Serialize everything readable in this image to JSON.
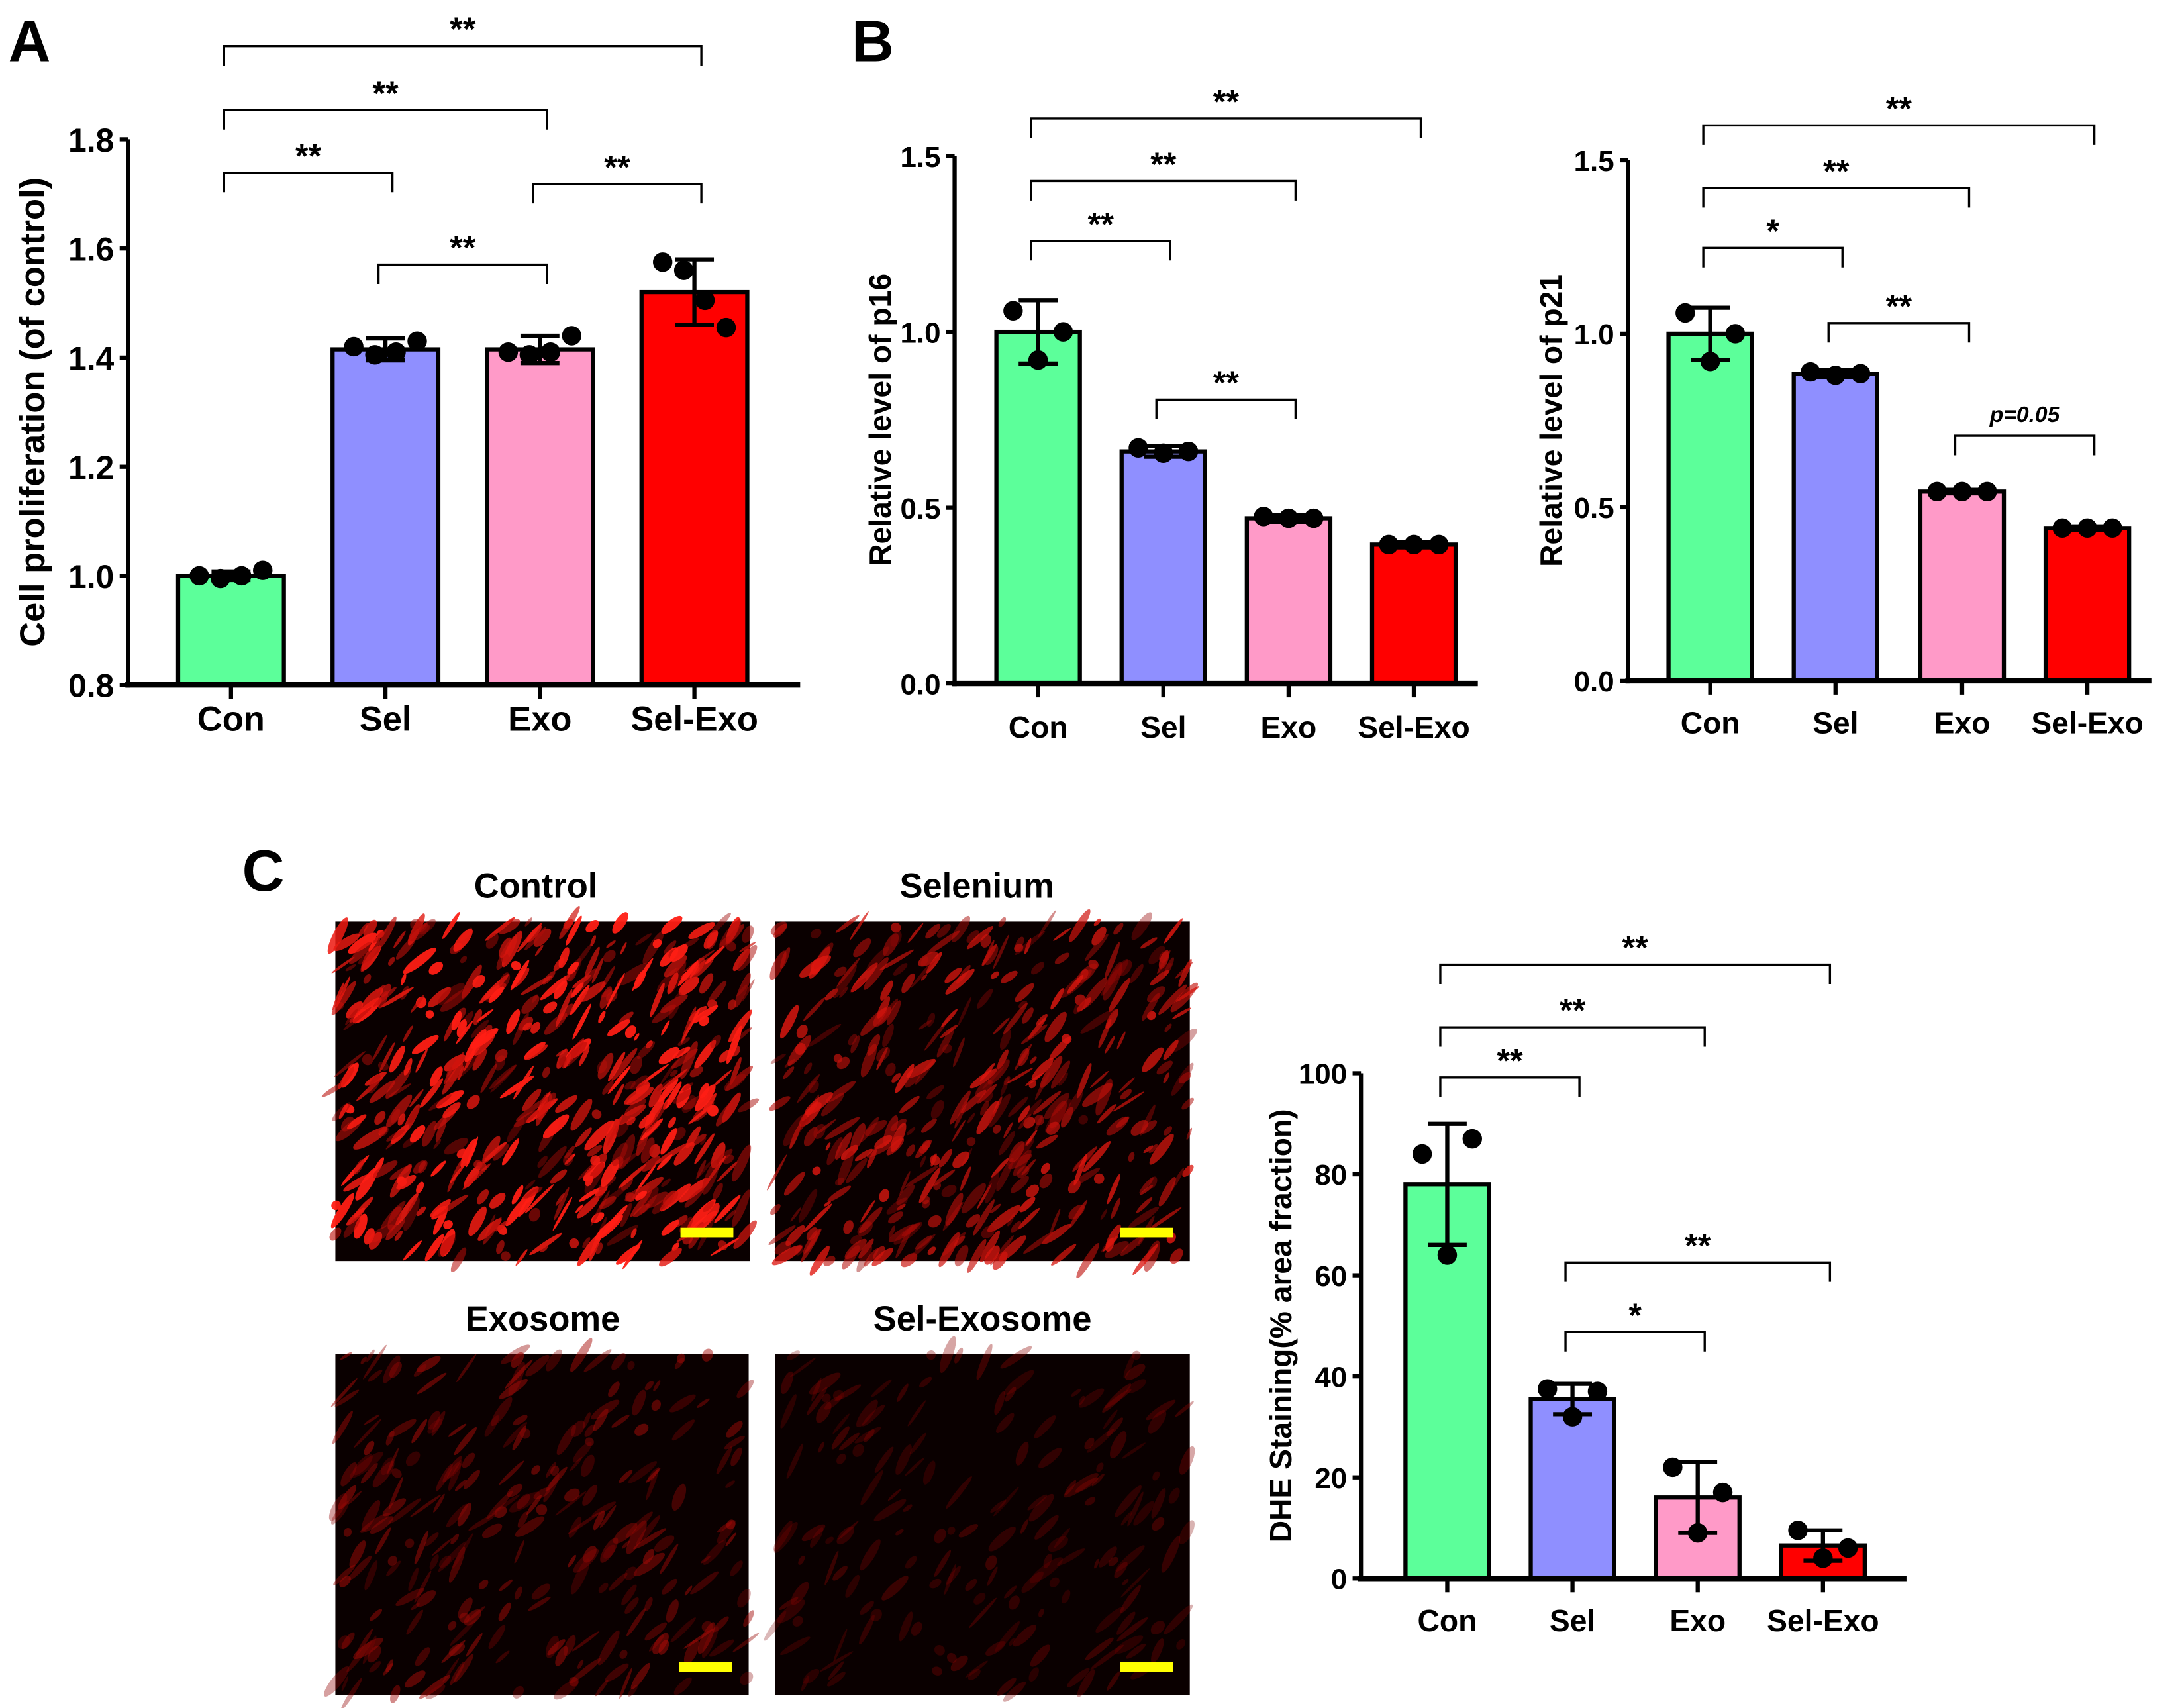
{
  "panel_labels": {
    "a": "A",
    "b": "B",
    "c": "C"
  },
  "micrographs": {
    "titles": [
      "Control",
      "Selenium",
      "Exosome",
      "Sel-Exosome"
    ],
    "relative_signal": [
      1.0,
      0.7,
      0.35,
      0.15
    ],
    "scale_bar_color": "#ffff00"
  },
  "chart_data": [
    {
      "id": "A",
      "type": "bar",
      "title": "",
      "ylabel": "Cell proliferation (of control)",
      "categories": [
        "Con",
        "Sel",
        "Exo",
        "Sel-Exo"
      ],
      "values": [
        1.0,
        1.415,
        1.415,
        1.52
      ],
      "errors": [
        0.008,
        0.02,
        0.025,
        0.06
      ],
      "points": [
        [
          1.0,
          0.995,
          1.0,
          1.01
        ],
        [
          1.42,
          1.405,
          1.41,
          1.43
        ],
        [
          1.41,
          1.405,
          1.41,
          1.44
        ],
        [
          1.575,
          1.56,
          1.505,
          1.455
        ]
      ],
      "ylim": [
        0.8,
        1.8
      ],
      "yticks": [
        "0.8",
        "1.0",
        "1.2",
        "1.4",
        "1.6",
        "1.8"
      ],
      "ytick_values": [
        0.8,
        1.0,
        1.2,
        1.4,
        1.6,
        1.8
      ],
      "colors": [
        "#5cff9a",
        "#8f8fff",
        "#ff9ac8",
        "#ff0000"
      ],
      "significance": [
        {
          "from": 0,
          "to": 3,
          "label": "**"
        },
        {
          "from": 0,
          "to": 2,
          "label": "**"
        },
        {
          "from": 0,
          "to": 1,
          "label": "**"
        },
        {
          "from": 2,
          "to": 3,
          "label": "**"
        },
        {
          "from": 1,
          "to": 2,
          "label": "**"
        }
      ]
    },
    {
      "id": "B-p16",
      "type": "bar",
      "title": "",
      "ylabel": "Relative level of p16",
      "categories": [
        "Con",
        "Sel",
        "Exo",
        "Sel-Exo"
      ],
      "values": [
        1.0,
        0.66,
        0.47,
        0.395
      ],
      "errors": [
        0.09,
        0.015,
        0.01,
        0.008
      ],
      "points": [
        [
          1.06,
          0.92,
          1.0
        ],
        [
          0.67,
          0.655,
          0.66
        ],
        [
          0.475,
          0.47,
          0.47
        ],
        [
          0.395,
          0.395,
          0.395
        ]
      ],
      "ylim": [
        0,
        1.5
      ],
      "yticks": [
        "0.0",
        "0.5",
        "1.0",
        "1.5"
      ],
      "ytick_values": [
        0,
        0.5,
        1.0,
        1.5
      ],
      "colors": [
        "#5cff9a",
        "#8f8fff",
        "#ff9ac8",
        "#ff0000"
      ],
      "significance": [
        {
          "from": 0,
          "to": 3,
          "label": "**"
        },
        {
          "from": 0,
          "to": 2,
          "label": "**"
        },
        {
          "from": 0,
          "to": 1,
          "label": "**"
        },
        {
          "from": 1,
          "to": 2,
          "label": "**"
        }
      ]
    },
    {
      "id": "B-p21",
      "type": "bar",
      "title": "",
      "ylabel": "Relative level of p21",
      "categories": [
        "Con",
        "Sel",
        "Exo",
        "Sel-Exo"
      ],
      "values": [
        1.0,
        0.885,
        0.545,
        0.44
      ],
      "errors": [
        0.075,
        0.01,
        0.005,
        0.005
      ],
      "points": [
        [
          1.06,
          0.92,
          1.0
        ],
        [
          0.89,
          0.88,
          0.885
        ],
        [
          0.545,
          0.545,
          0.545
        ],
        [
          0.44,
          0.44,
          0.44
        ]
      ],
      "ylim": [
        0,
        1.5
      ],
      "yticks": [
        "0.0",
        "0.5",
        "1.0",
        "1.5"
      ],
      "ytick_values": [
        0,
        0.5,
        1.0,
        1.5
      ],
      "colors": [
        "#5cff9a",
        "#8f8fff",
        "#ff9ac8",
        "#ff0000"
      ],
      "significance": [
        {
          "from": 0,
          "to": 3,
          "label": "**"
        },
        {
          "from": 0,
          "to": 2,
          "label": "**"
        },
        {
          "from": 0,
          "to": 1,
          "label": "*"
        },
        {
          "from": 1,
          "to": 2,
          "label": "**"
        },
        {
          "from": 2,
          "to": 3,
          "label": "p=0.05"
        }
      ]
    },
    {
      "id": "C",
      "type": "bar",
      "title": "",
      "ylabel": "DHE Staining(% area fraction)",
      "categories": [
        "Con",
        "Sel",
        "Exo",
        "Sel-Exo"
      ],
      "values": [
        78,
        35.5,
        16,
        6.5
      ],
      "errors": [
        12,
        3,
        7,
        3
      ],
      "points": [
        [
          84,
          64,
          87
        ],
        [
          37.5,
          32,
          37
        ],
        [
          22,
          9,
          17
        ],
        [
          9.5,
          4,
          6
        ]
      ],
      "ylim": [
        0,
        100
      ],
      "yticks": [
        "0",
        "20",
        "40",
        "60",
        "80",
        "100"
      ],
      "ytick_values": [
        0,
        20,
        40,
        60,
        80,
        100
      ],
      "colors": [
        "#5cff9a",
        "#8f8fff",
        "#ff9ac8",
        "#ff0000"
      ],
      "significance": [
        {
          "from": 0,
          "to": 3,
          "label": "**"
        },
        {
          "from": 0,
          "to": 2,
          "label": "**"
        },
        {
          "from": 0,
          "to": 1,
          "label": "**"
        },
        {
          "from": 1,
          "to": 3,
          "label": "**"
        },
        {
          "from": 1,
          "to": 2,
          "label": "*"
        }
      ]
    }
  ]
}
